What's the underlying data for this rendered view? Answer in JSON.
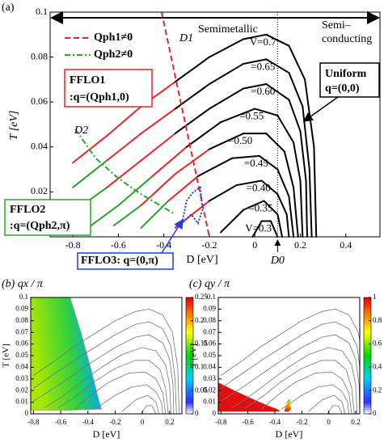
{
  "chart_data": [
    {
      "type": "contour",
      "title": "(a)",
      "xlabel": "D [eV]",
      "ylabel": "T [eV]",
      "xlim": [
        -0.9,
        0.55
      ],
      "ylim": [
        0,
        0.1
      ],
      "xticks": [
        -0.8,
        -0.6,
        -0.4,
        -0.2,
        0,
        0.2,
        0.4
      ],
      "yticks": [
        0.02,
        0.04,
        0.06,
        0.08,
        0.1
      ],
      "phase_colors": {
        "uniform": "#000000",
        "fflo1": "#e8262a",
        "fflo2": "#2aa52a",
        "fflo3": "#1f3fe0"
      },
      "series": [
        {
          "name": "V=0.7",
          "x": [
            -0.8,
            -0.65,
            -0.5,
            -0.35,
            -0.2,
            -0.05,
            0.05,
            0.15,
            0.22,
            0.26,
            0.27
          ],
          "y": [
            0.033,
            0.045,
            0.058,
            0.069,
            0.08,
            0.088,
            0.09,
            0.085,
            0.07,
            0.04,
            0
          ]
        },
        {
          "name": "=0.65",
          "x": [
            -0.8,
            -0.65,
            -0.5,
            -0.35,
            -0.2,
            -0.05,
            0.05,
            0.15,
            0.21,
            0.24,
            0.25
          ],
          "y": [
            0.022,
            0.034,
            0.046,
            0.057,
            0.068,
            0.077,
            0.079,
            0.073,
            0.058,
            0.03,
            0
          ]
        },
        {
          "name": "=0.60",
          "x": [
            -0.8,
            -0.65,
            -0.5,
            -0.35,
            -0.2,
            -0.05,
            0.05,
            0.15,
            0.2,
            0.225,
            0.23
          ],
          "y": [
            0.011,
            0.022,
            0.034,
            0.046,
            0.057,
            0.066,
            0.068,
            0.061,
            0.047,
            0.025,
            0
          ]
        },
        {
          "name": "=0.55",
          "x": [
            -0.72,
            -0.6,
            -0.45,
            -0.3,
            -0.15,
            0,
            0.1,
            0.17,
            0.2,
            0.21
          ],
          "y": [
            0.005,
            0.014,
            0.027,
            0.04,
            0.051,
            0.057,
            0.054,
            0.042,
            0.025,
            0
          ]
        },
        {
          "name": "=0.50",
          "x": [
            -0.62,
            -0.5,
            -0.35,
            -0.2,
            -0.05,
            0.05,
            0.13,
            0.17,
            0.19
          ],
          "y": [
            0.005,
            0.014,
            0.028,
            0.039,
            0.046,
            0.046,
            0.038,
            0.022,
            0
          ]
        },
        {
          "name": "=0.45",
          "x": [
            -0.5,
            -0.38,
            -0.25,
            -0.1,
            0.02,
            0.1,
            0.15,
            0.17
          ],
          "y": [
            0.004,
            0.016,
            0.027,
            0.035,
            0.036,
            0.03,
            0.018,
            0
          ]
        },
        {
          "name": "=0.40",
          "x": [
            -0.35,
            -0.2,
            -0.08,
            0.03,
            0.1,
            0.14,
            0.15
          ],
          "y": [
            0.004,
            0.016,
            0.023,
            0.025,
            0.019,
            0.01,
            0
          ]
        },
        {
          "name": "=0.35",
          "x": [
            -0.15,
            -0.05,
            0.04,
            0.1,
            0.12
          ],
          "y": [
            0.002,
            0.012,
            0.016,
            0.01,
            0
          ]
        },
        {
          "name": "V=0.3",
          "x": [
            -0.01,
            0.03,
            0.07,
            0.1
          ],
          "y": [
            0,
            0.007,
            0.007,
            0
          ]
        }
      ],
      "boundaries": [
        {
          "name": "Qph1≠0",
          "label": "D1",
          "x": [
            -0.41,
            -0.2
          ],
          "y": [
            0.1,
            0
          ]
        },
        {
          "name": "Qph2≠0",
          "label": "D2",
          "x": [
            -0.79,
            -0.7,
            -0.6,
            -0.5,
            -0.4,
            -0.35
          ],
          "y": [
            0.048,
            0.035,
            0.026,
            0.019,
            0.013,
            0.01
          ]
        },
        {
          "x": [
            -0.32,
            -0.3,
            -0.27,
            -0.24,
            -0.23,
            -0.25,
            -0.28,
            -0.32
          ],
          "y": [
            0.006,
            0.016,
            0.02,
            0.022,
            0.012,
            0.006,
            0.01,
            0.006
          ]
        }
      ],
      "d0": {
        "label": "D0",
        "value": 0.1
      },
      "texts": [
        "Semimetallic",
        "Semi–",
        "conducting",
        "Uniform",
        "q=(0,0)",
        "FFLO1",
        ":q=(Qph1,0)",
        "FFLO2",
        ":q=(Qph2,π)",
        "FFLO3: q=(0,π)"
      ]
    },
    {
      "type": "heatmap",
      "title": "(b) qx / π",
      "xlabel": "D [eV]",
      "ylabel": "T [eV]",
      "xlim": [
        -0.82,
        0.29
      ],
      "ylim": [
        0,
        0.1
      ],
      "xticks": [
        -0.8,
        -0.6,
        -0.4,
        -0.2,
        0,
        0.2
      ],
      "yticks": [
        0,
        0.01,
        0.02,
        0.03,
        0.04,
        0.05,
        0.06,
        0.07,
        0.08,
        0.09,
        0.1
      ],
      "colorbar": {
        "lim": [
          0,
          0.25
        ],
        "ticks": [
          0,
          0.05,
          0.1,
          0.15,
          0.2,
          0.25
        ]
      },
      "regions": [
        {
          "x": [
            -0.82,
            -0.53,
            -0.45,
            -0.38,
            -0.32,
            -0.3,
            -0.55,
            -0.82
          ],
          "y": [
            0.1,
            0.1,
            0.07,
            0.04,
            0.012,
            0.004,
            0.003,
            0.003
          ]
        }
      ]
    },
    {
      "type": "heatmap",
      "title": "(c) qy / π",
      "xlabel": "D [eV]",
      "ylabel": "T [eV]",
      "xlim": [
        -0.82,
        0.23
      ],
      "ylim": [
        0,
        0.1
      ],
      "xticks": [
        -0.8,
        -0.6,
        -0.4,
        -0.2,
        0,
        0.2
      ],
      "yticks": [
        0,
        0.01,
        0.02,
        0.03,
        0.04,
        0.05,
        0.06,
        0.07,
        0.08,
        0.09,
        0.1
      ],
      "colorbar": {
        "lim": [
          0,
          1
        ],
        "ticks": [
          0,
          0.2,
          0.4,
          0.6,
          0.8,
          1
        ]
      },
      "regions": [
        {
          "x": [
            -0.82,
            -0.7,
            -0.55,
            -0.45,
            -0.38,
            -0.36,
            -0.82
          ],
          "y": [
            0.027,
            0.02,
            0.012,
            0.007,
            0.004,
            0.002,
            0.002
          ]
        },
        {
          "x": [
            -0.33,
            -0.31,
            -0.29,
            -0.28,
            -0.3,
            -0.33
          ],
          "y": [
            0.002,
            0.011,
            0.013,
            0.004,
            0.002,
            0.002
          ]
        }
      ]
    }
  ]
}
